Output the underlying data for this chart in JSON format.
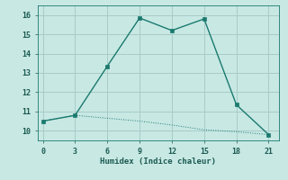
{
  "xlabel": "Humidex (Indice chaleur)",
  "ylabel": "",
  "background_color": "#c8e8e4",
  "grid_color": "#a8ccc8",
  "line_color": "#1a7a6e",
  "xlim": [
    -0.5,
    22
  ],
  "ylim": [
    9.5,
    16.5
  ],
  "xticks": [
    0,
    3,
    6,
    9,
    12,
    15,
    18,
    21
  ],
  "yticks": [
    10,
    11,
    12,
    13,
    14,
    15,
    16
  ],
  "series1_x": [
    0,
    3,
    6,
    9,
    12,
    15,
    18,
    21
  ],
  "series1_y": [
    10.5,
    10.8,
    13.35,
    15.85,
    15.2,
    15.8,
    11.35,
    9.8
  ],
  "series2_x": [
    0,
    3,
    6,
    9,
    12,
    15,
    18,
    21
  ],
  "series2_y": [
    10.5,
    10.8,
    10.65,
    10.5,
    10.3,
    10.05,
    9.95,
    9.8
  ]
}
